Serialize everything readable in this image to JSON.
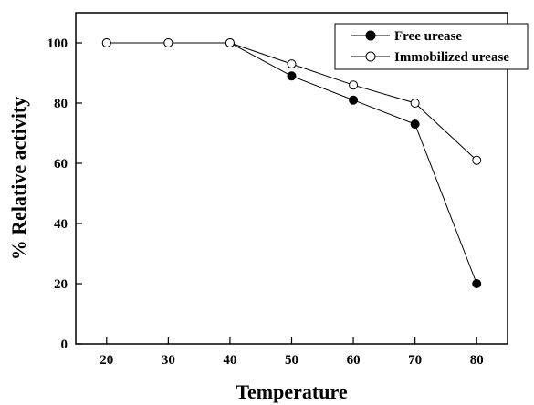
{
  "chart_data": {
    "type": "line",
    "xlabel": "Temperature",
    "ylabel": "% Relative activity",
    "x": [
      20,
      30,
      40,
      50,
      60,
      70,
      80
    ],
    "xlim": [
      15,
      85
    ],
    "ylim": [
      0,
      110
    ],
    "xticks": [
      20,
      30,
      40,
      50,
      60,
      70,
      80
    ],
    "yticks": [
      0,
      20,
      40,
      60,
      80,
      100
    ],
    "grid": false,
    "legend_position": "top-right",
    "series": [
      {
        "name": "Free urease",
        "marker": "filled-circle",
        "color": "#000000",
        "values": [
          100,
          100,
          100,
          89,
          81,
          73,
          20
        ]
      },
      {
        "name": "Immobilized urease",
        "marker": "open-circle",
        "color": "#000000",
        "values": [
          100,
          100,
          100,
          93,
          86,
          80,
          61
        ]
      }
    ]
  }
}
